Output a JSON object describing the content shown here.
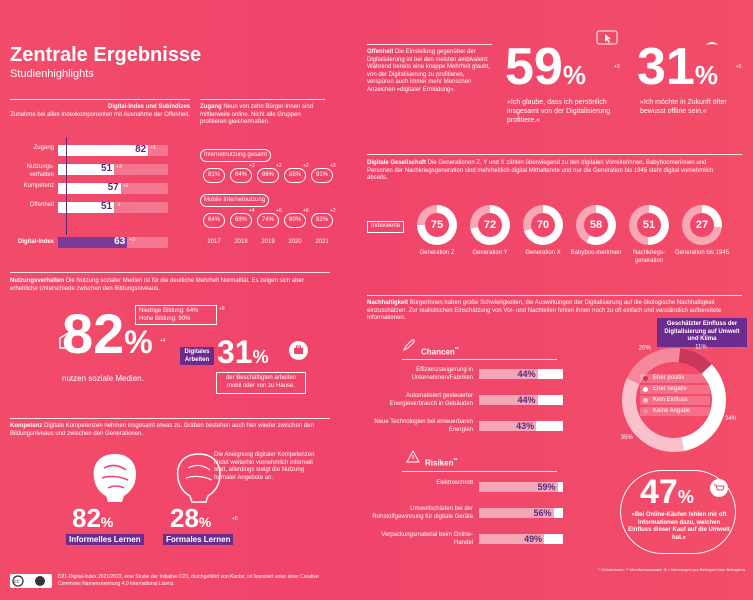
{
  "header": {
    "title": "Zentrale Ergebnisse",
    "subtitle": "Studienhighlights"
  },
  "index_panel": {
    "intro": "Digital-Index und Subindizes",
    "intro_rest": "Zunahme bei allen Indexkomponenten mit Ausnahme der Offenheit.",
    "rows": [
      {
        "label": "Zugang",
        "value": 82,
        "display": "82",
        "delta": "+1"
      },
      {
        "label": "Nutzungs-\nverhalten",
        "value": 51,
        "display": "51",
        "delta": "+3"
      },
      {
        "label": "Kompetenz",
        "value": 57,
        "display": "57",
        "delta": "+2"
      },
      {
        "label": "Offenheit",
        "value": 51,
        "display": "51",
        "delta": "-1"
      }
    ],
    "total": {
      "label": "Digital-Index",
      "value": 63,
      "display": "63",
      "delta": "+3"
    }
  },
  "access_panel": {
    "heading": "Zugang",
    "text": "Neun von zehn Bürger-Innen sind mittlerweile online. Nicht alle Gruppen profitieren gleichermaßen.",
    "internet_label": "Internetnutzung gesamt",
    "internet_values": [
      "81%",
      "84%",
      "86%",
      "88%",
      "91%"
    ],
    "internet_deltas": [
      "",
      "+3",
      "+2",
      "+2",
      "+3"
    ],
    "mobile_label": "Mobile Internetnutzung",
    "mobile_values": [
      "64%",
      "68%",
      "74%",
      "80%",
      "82%"
    ],
    "mobile_deltas": [
      "",
      "+4",
      "+6",
      "+6",
      "+2"
    ],
    "years": [
      "2017",
      "2018",
      "2019",
      "2020",
      "2021"
    ]
  },
  "usage_panel": {
    "heading": "Nutzungsverhalten",
    "text": "Die Nutzung sozialer Medien ist für die deutliche Mehrheit Normalität. Es zeigen sich aber erhebliche Unterschiede zwischen den Bildungsniveaus.",
    "big_value": "82",
    "big_unit": "%",
    "big_delta": "+4",
    "edu_low": "Niedrige Bildung: 64%",
    "edu_low_delta": "+6",
    "edu_high": "Hohe Bildung: 90%",
    "caption": "nutzen soziale Medien.",
    "badge": "Digitales Arbeiten",
    "work_value": "31",
    "work_unit": "%",
    "work_caption": "der Beschäftigten arbeiten mobil oder von zu Hause."
  },
  "competence_panel": {
    "heading": "Kompetenz",
    "text": "Digitale Kompetenzen nehmen insgesamt etwas zu. Gräben bestehen auch hier wieder zwischen den Bildungsniveaus und zwischen den Generationen.",
    "side_text": "Die Aneignung digitaler Kompetenzen findet weiterhin vornehmlich informell statt, allerdings steigt die Nutzung formaler Angebote an.",
    "informal_value": "82",
    "informal_label": "Informelles Lernen",
    "formal_value": "28",
    "formal_label": "Formales Lernen",
    "formal_delta": "+5",
    "unit": "%"
  },
  "footer": {
    "license_icon": "cc-by-icon",
    "text": "D21-Digital-Index 2021/2022, eine Studie der Initiative D21, durchgeführt von Kantar, ist lizenziert unter einer Creative Commons Namensnennung 4.0 International Lizenz."
  },
  "openness_panel": {
    "heading": "Offenheit",
    "text": "Die Einstellung gegenüber der Digitalisierung ist bei den meisten ambivalent: Während bereits eine knappe Mehrheit glaubt, von der Digitalisierung zu profitieren, verspüren auch immer mehr Menschen Anzeichen »digitaler Ermüdung«.",
    "stat1_value": "59",
    "stat1_delta": "+3",
    "stat1_text": "»Ich glaube, dass ich persönlich insgesamt von der Digitalisierung profitiere.«",
    "stat2_value": "31",
    "stat2_delta": "+5",
    "stat2_text": "»Ich möchte in Zukunft öfter bewusst offline sein.«",
    "unit": "%"
  },
  "society_panel": {
    "heading": "Digitale Gesellschaft",
    "text": "Die Generationen Z, Y und X zählen überwiegend zu den digitalen Vorreiterinnen. Babyboomerinnen und Personen der Nachkriegsgeneration sind mehrheitlich digital Mithaltende und nur die Generation bis 1945 steht digital vornehmlich abseits.",
    "index_label": "Indexwerte",
    "generations": [
      {
        "value": 75,
        "label": "Generation Z"
      },
      {
        "value": 72,
        "label": "Generation Y"
      },
      {
        "value": 70,
        "label": "Generation X"
      },
      {
        "value": 58,
        "label": "Babyboo-merinnen"
      },
      {
        "value": 51,
        "label": "Nachkriegs-generation"
      },
      {
        "value": 27,
        "label": "Generation bis 1945"
      }
    ]
  },
  "sustain_panel": {
    "heading": "Nachhaltigkeit",
    "text": "BürgerInnen haben große Schwierigkeiten, die Auswirkungen der Digitalisierung auf die ökologische Nachhaltigkeit einzuschätzen. Zur realistischen Einschätzung von Vor- und Nachteilen fehlen ihnen noch zu oft einfach und verständlich aufbereitete Informationen.",
    "chances_label": "Chancen",
    "chances_mark": "**",
    "chances": [
      {
        "label": "Effizienzsteigerung in Unternehmen/Fabriken",
        "value": 44,
        "display": "44%"
      },
      {
        "label": "Automatisiert gesteuerter Energieverbrauch in Gebäuden",
        "value": 44,
        "display": "44%"
      },
      {
        "label": "Neue Technologien bei erneuerbaren Energien",
        "value": 43,
        "display": "43%"
      }
    ],
    "risks_label": "Risiken",
    "risks_mark": "**",
    "risks": [
      {
        "label": "Elektroschrott",
        "value": 59,
        "display": "59%"
      },
      {
        "label": "Umweltschäden bei der Rohstoffgewinnung für digitale Geräte",
        "value": 56,
        "display": "56%"
      },
      {
        "label": "Verpackungsmaterial beim Online-Handel",
        "value": 49,
        "display": "49%"
      }
    ],
    "donut_title": "Geschätzter Einfluss der Digitalisierung auf Umwelt und Klima",
    "donut": [
      {
        "label": "Eher positiv",
        "value": 11,
        "display": "11%",
        "color": "#c9375a"
      },
      {
        "label": "Eher negativ",
        "value": 34,
        "display": "34%",
        "color": "#ffffff"
      },
      {
        "label": "Kein Einfluss",
        "value": 35,
        "display": "35%",
        "color": "#f9c1cc"
      },
      {
        "label": "Keine Angabe",
        "value": 20,
        "display": "20%",
        "color": "#f5879e"
      }
    ],
    "online_value": "47",
    "online_unit": "%",
    "online_text": "»Bei Online-Käufen fehlen mir oft Informationen dazu, welchen Einfluss dieser Kauf auf die Umwelt hat.«",
    "footnote": "* Onlinerinnen; ** Mehrfachauswahl; Ø = Nennungen pro Befragter bzw. Befragtem"
  },
  "colors": {
    "accent": "#f0446b",
    "purple": "#6b2b8f",
    "bar_light": "#f4a7b6"
  }
}
